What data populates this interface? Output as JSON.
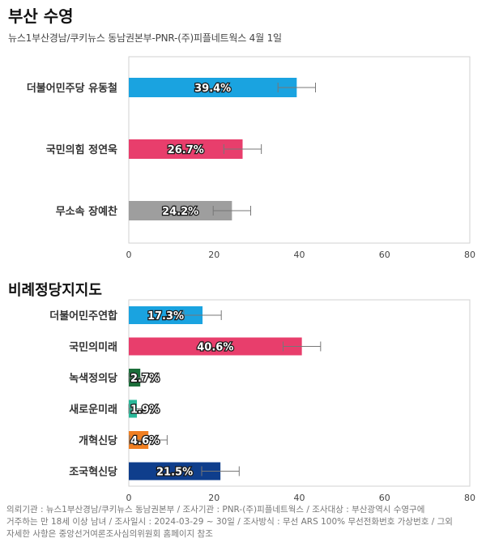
{
  "title": "부산 수영",
  "subtitle": "뉴스1부산경남/쿠키뉴스 동남권본부-PNR-(주)피플네트웍스 4월 1일",
  "section_title": "비례정당지지도",
  "footnote": [
    "의뢰기관 : 뉴스1부산경남/쿠키뉴스 동남권본부 / 조사기관 : PNR-(주)피플네트웍스 / 조사대상 : 부산광역시 수영구에",
    "거주하는 만 18세 이상 남녀 / 조사일시 : 2024-03-29 ~ 30일 / 조사방식 : 무선 ARS 100% 무선전화번호 가상번호 / 그외",
    "자세한 사항은 중앙선거여론조사심의위원회 홈페이지 참조"
  ],
  "chart_data": [
    {
      "type": "bar",
      "orientation": "horizontal",
      "title": "부산 수영",
      "categories": [
        "더불어민주당 유동철",
        "국민의힘 정연욱",
        "무소속 장예찬"
      ],
      "values": [
        39.4,
        26.7,
        24.2
      ],
      "value_labels": [
        "39.4%",
        "26.7%",
        "24.2%"
      ],
      "error_margin": 4.4,
      "colors": [
        "#1aa3e0",
        "#e83e6c",
        "#9e9e9e"
      ],
      "xlim": [
        0,
        80
      ],
      "xticks": [
        "0",
        "20",
        "40",
        "60",
        "80"
      ],
      "grid": false
    },
    {
      "type": "bar",
      "orientation": "horizontal",
      "title": "비례정당지지도",
      "categories": [
        "더불어민주연합",
        "국민의미래",
        "녹색정의당",
        "새로운미래",
        "개혁신당",
        "조국혁신당"
      ],
      "values": [
        17.3,
        40.6,
        2.7,
        1.9,
        4.6,
        21.5
      ],
      "value_labels": [
        "17.3%",
        "40.6%",
        "2.7%",
        "1.9%",
        "4.6%",
        "21.5%"
      ],
      "error_margin": 4.4,
      "colors": [
        "#1aa3e0",
        "#e83e6c",
        "#1b6e3a",
        "#2ab89a",
        "#f07f22",
        "#0f3e8c"
      ],
      "xlim": [
        0,
        80
      ],
      "xticks": [
        "0",
        "20",
        "40",
        "60",
        "80"
      ],
      "grid": false
    }
  ]
}
